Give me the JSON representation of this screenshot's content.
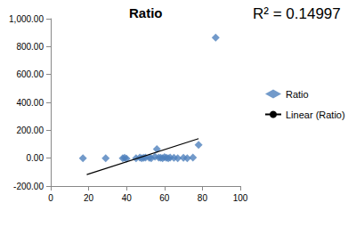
{
  "chart_data": {
    "type": "scatter",
    "title": "Ratio",
    "annotation": "R² = 0.14997",
    "xlim": [
      0,
      100
    ],
    "xticks": [
      0,
      20,
      40,
      60,
      80,
      100
    ],
    "ylim": [
      -200,
      1000
    ],
    "yticks": [
      {
        "value": -200,
        "label": "-200.00"
      },
      {
        "value": 0,
        "label": "0.00"
      },
      {
        "value": 200,
        "label": "200.00"
      },
      {
        "value": 400,
        "label": "400.00"
      },
      {
        "value": 600,
        "label": "600.00"
      },
      {
        "value": 800,
        "label": "800.00"
      },
      {
        "value": 1000,
        "label": "1,000.00"
      }
    ],
    "grid": false,
    "legend": "right",
    "series": [
      {
        "name": "Ratio",
        "type": "scatter",
        "marker": "diamond",
        "color": "#4f81bd",
        "x": [
          17,
          29,
          38,
          39,
          40,
          45,
          47,
          48,
          49,
          50,
          52,
          53,
          55,
          56,
          57,
          58,
          59,
          60,
          61,
          62,
          63,
          65,
          67,
          70,
          72,
          75,
          78,
          87
        ],
        "values": [
          0,
          0,
          0,
          2,
          -3,
          0,
          5,
          0,
          3,
          5,
          2,
          0,
          10,
          65,
          5,
          2,
          0,
          8,
          3,
          0,
          5,
          2,
          0,
          3,
          0,
          5,
          95,
          865
        ]
      },
      {
        "name": "Linear (Ratio)",
        "type": "line",
        "line_style": "solid",
        "color": "#000000",
        "x": [
          19,
          78
        ],
        "values": [
          -118,
          140
        ]
      }
    ]
  }
}
